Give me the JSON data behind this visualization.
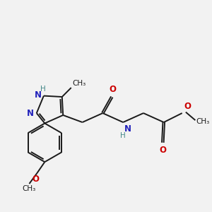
{
  "bg": "#f2f2f2",
  "bc": "#1a1a1a",
  "nc": "#2222bb",
  "oc": "#cc0000",
  "hc": "#448888",
  "lw": 1.4,
  "lw2": 1.4,
  "fs": 8.5,
  "fs_small": 7.5,
  "xlim": [
    0,
    10
  ],
  "ylim": [
    0,
    10
  ]
}
